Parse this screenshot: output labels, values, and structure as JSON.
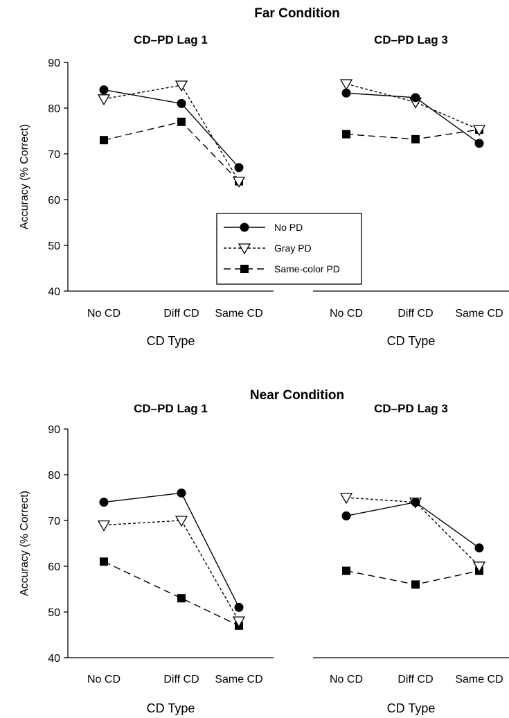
{
  "groups": [
    {
      "title": "Far Condition"
    },
    {
      "title": "Near Condition"
    }
  ],
  "legend": {
    "entries": [
      {
        "label": "No PD",
        "marker": "circle",
        "dash": "solid"
      },
      {
        "label": "Gray PD",
        "marker": "triangle-down",
        "dash": "dotted"
      },
      {
        "label": "Same-color PD",
        "marker": "square",
        "dash": "dashed"
      }
    ]
  },
  "chart_data": [
    {
      "type": "line",
      "group": "Far Condition",
      "title": "CD–PD Lag 1",
      "xlabel": "CD Type",
      "ylabel": "Accuracy (% Correct)",
      "categories": [
        "No CD",
        "Diff CD",
        "Same CD"
      ],
      "ylim": [
        40,
        90
      ],
      "yticks": [
        40,
        50,
        60,
        70,
        80,
        90
      ],
      "show_yaxis": true,
      "series": [
        {
          "name": "No PD",
          "values": [
            84,
            81,
            67
          ]
        },
        {
          "name": "Gray PD",
          "values": [
            82,
            85,
            64
          ]
        },
        {
          "name": "Same-color PD",
          "values": [
            73,
            77,
            64
          ]
        }
      ]
    },
    {
      "type": "line",
      "group": "Far Condition",
      "title": "CD–PD Lag 3",
      "xlabel": "CD Type",
      "ylabel": "",
      "categories": [
        "No CD",
        "Diff CD",
        "Same CD"
      ],
      "ylim": [
        40,
        90
      ],
      "show_yaxis": false,
      "series": [
        {
          "name": "No PD",
          "values": [
            83.3,
            82.3,
            72.3
          ]
        },
        {
          "name": "Gray PD",
          "values": [
            85.3,
            81.3,
            75.3
          ]
        },
        {
          "name": "Same-color PD",
          "values": [
            74.3,
            73.2,
            75.3
          ]
        }
      ]
    },
    {
      "type": "line",
      "group": "Near Condition",
      "title": "CD–PD Lag 1",
      "xlabel": "CD Type",
      "ylabel": "Accuracy (% Correct)",
      "categories": [
        "No CD",
        "Diff CD",
        "Same CD"
      ],
      "ylim": [
        40,
        90
      ],
      "yticks": [
        40,
        50,
        60,
        70,
        80,
        90
      ],
      "show_yaxis": true,
      "series": [
        {
          "name": "No PD",
          "values": [
            74,
            76,
            51
          ]
        },
        {
          "name": "Gray PD",
          "values": [
            69,
            70,
            48
          ]
        },
        {
          "name": "Same-color PD",
          "values": [
            61,
            53,
            47
          ]
        }
      ]
    },
    {
      "type": "line",
      "group": "Near Condition",
      "title": "CD–PD Lag 3",
      "xlabel": "CD Type",
      "ylabel": "",
      "categories": [
        "No CD",
        "Diff CD",
        "Same CD"
      ],
      "ylim": [
        40,
        90
      ],
      "show_yaxis": false,
      "series": [
        {
          "name": "No PD",
          "values": [
            71,
            74,
            64
          ]
        },
        {
          "name": "Gray PD",
          "values": [
            75,
            74,
            60
          ]
        },
        {
          "name": "Same-color PD",
          "values": [
            59,
            56,
            59
          ]
        }
      ]
    }
  ]
}
